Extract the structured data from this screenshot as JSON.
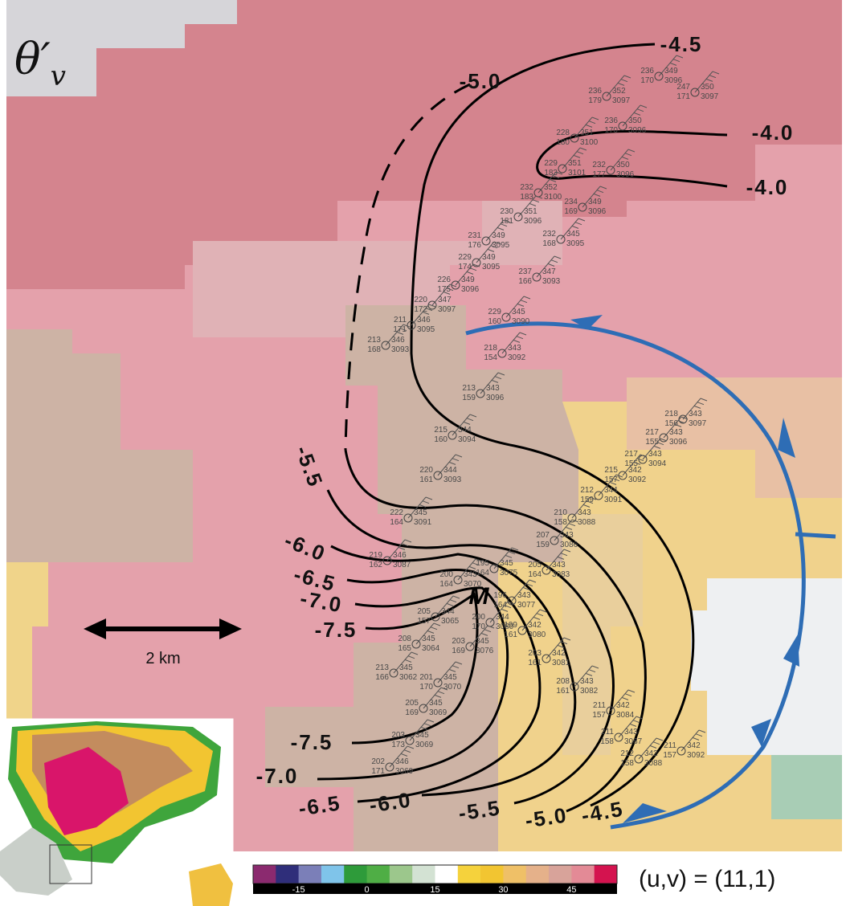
{
  "panel_label": {
    "base": "θ′",
    "sub": "v"
  },
  "marker_label": "M",
  "scale_bar_label": "2 km",
  "vector_label": "(u,v) = (11,1)",
  "contour_labels": [
    "-4.5",
    "-5.0",
    "-4.0",
    "-4.0",
    "-5.5",
    "-6.0",
    "-6.5",
    "-7.0",
    "-7.5",
    "-7.5",
    "-7.0",
    "-6.5",
    "-6.0",
    "-5.5",
    "-5.0",
    "-4.5"
  ],
  "colorbar": {
    "clim": [
      -25,
      55
    ],
    "ticks": [
      -15,
      0,
      15,
      30,
      45
    ],
    "colors": [
      "#8b2a6f",
      "#2f2e7a",
      "#7b7fb8",
      "#7fc4ea",
      "#2e9b3a",
      "#4fae45",
      "#9cc78c",
      "#d3e2d3",
      "#ffffff",
      "#f5d23c",
      "#f2c531",
      "#efc067",
      "#e5b18a",
      "#d8a39a",
      "#e38a96",
      "#d4134f"
    ]
  },
  "stations": [
    {
      "tl": "236",
      "bl": "170",
      "tr": "349",
      "br": "3096"
    },
    {
      "tl": "236",
      "bl": "179",
      "tr": "352",
      "br": "3097"
    },
    {
      "tl": "247",
      "bl": "171",
      "tr": "350",
      "br": "3097"
    },
    {
      "tl": "236",
      "bl": "170",
      "tr": "350",
      "br": "3096"
    },
    {
      "tl": "228",
      "bl": "180",
      "tr": "351",
      "br": "3100"
    },
    {
      "tl": "229",
      "bl": "183",
      "tr": "351",
      "br": "3101"
    },
    {
      "tl": "232",
      "bl": "177",
      "tr": "350",
      "br": "3096"
    },
    {
      "tl": "232",
      "bl": "183",
      "tr": "352",
      "br": "3100"
    },
    {
      "tl": "234",
      "bl": "169",
      "tr": "349",
      "br": "3096"
    },
    {
      "tl": "230",
      "bl": "181",
      "tr": "351",
      "br": "3096"
    },
    {
      "tl": "231",
      "bl": "176",
      "tr": "349",
      "br": "3095"
    },
    {
      "tl": "232",
      "bl": "168",
      "tr": "345",
      "br": "3095"
    },
    {
      "tl": "229",
      "bl": "174",
      "tr": "349",
      "br": "3095"
    },
    {
      "tl": "237",
      "bl": "166",
      "tr": "347",
      "br": "3093"
    },
    {
      "tl": "226",
      "bl": "175",
      "tr": "349",
      "br": "3096"
    },
    {
      "tl": "220",
      "bl": "172",
      "tr": "347",
      "br": "3097"
    },
    {
      "tl": "229",
      "bl": "160",
      "tr": "345",
      "br": "3090"
    },
    {
      "tl": "211",
      "bl": "171",
      "tr": "346",
      "br": "3095"
    },
    {
      "tl": "213",
      "bl": "168",
      "tr": "346",
      "br": "3093"
    },
    {
      "tl": "218",
      "bl": "154",
      "tr": "343",
      "br": "3092"
    },
    {
      "tl": "213",
      "bl": "159",
      "tr": "343",
      "br": "3096"
    },
    {
      "tl": "215",
      "bl": "160",
      "tr": "344",
      "br": "3094"
    },
    {
      "tl": "218",
      "bl": "156",
      "tr": "343",
      "br": "3097"
    },
    {
      "tl": "217",
      "bl": "155",
      "tr": "343",
      "br": "3096"
    },
    {
      "tl": "217",
      "bl": "155",
      "tr": "343",
      "br": "3094"
    },
    {
      "tl": "215",
      "bl": "157",
      "tr": "342",
      "br": "3092"
    },
    {
      "tl": "220",
      "bl": "161",
      "tr": "344",
      "br": "3093"
    },
    {
      "tl": "212",
      "bl": "159",
      "tr": "344",
      "br": "3091"
    },
    {
      "tl": "210",
      "bl": "158",
      "tr": "343",
      "br": "3088"
    },
    {
      "tl": "222",
      "bl": "164",
      "tr": "345",
      "br": "3091"
    },
    {
      "tl": "207",
      "bl": "159",
      "tr": "343",
      "br": "3086"
    },
    {
      "tl": "219",
      "bl": "162",
      "tr": "346",
      "br": "3087"
    },
    {
      "tl": "205",
      "bl": "164",
      "tr": "343",
      "br": "3083"
    },
    {
      "tl": "195",
      "bl": "164",
      "tr": "345",
      "br": "3075"
    },
    {
      "tl": "200",
      "bl": "164",
      "tr": "343",
      "br": "3070"
    },
    {
      "tl": "196",
      "bl": "164",
      "tr": "343",
      "br": "3077"
    },
    {
      "tl": "205",
      "bl": "157",
      "tr": "344",
      "br": "3065"
    },
    {
      "tl": "200",
      "bl": "170",
      "tr": "344",
      "br": "3080"
    },
    {
      "tl": "199",
      "bl": "161",
      "tr": "342",
      "br": "3080"
    },
    {
      "tl": "208",
      "bl": "165",
      "tr": "345",
      "br": "3064"
    },
    {
      "tl": "203",
      "bl": "169",
      "tr": "345",
      "br": "3076"
    },
    {
      "tl": "203",
      "bl": "161",
      "tr": "342",
      "br": "3081"
    },
    {
      "tl": "213",
      "bl": "166",
      "tr": "345",
      "br": "3062"
    },
    {
      "tl": "201",
      "bl": "170",
      "tr": "345",
      "br": "3070"
    },
    {
      "tl": "208",
      "bl": "161",
      "tr": "343",
      "br": "3082"
    },
    {
      "tl": "205",
      "bl": "169",
      "tr": "345",
      "br": "3069"
    },
    {
      "tl": "211",
      "bl": "157",
      "tr": "342",
      "br": "3084"
    },
    {
      "tl": "203",
      "bl": "173",
      "tr": "345",
      "br": "3069"
    },
    {
      "tl": "211",
      "bl": "158",
      "tr": "343",
      "br": "3087"
    },
    {
      "tl": "211",
      "bl": "157",
      "tr": "342",
      "br": "3092"
    },
    {
      "tl": "212",
      "bl": "158",
      "tr": "342",
      "br": "3088"
    },
    {
      "tl": "202",
      "bl": "171",
      "tr": "346",
      "br": "3069"
    }
  ]
}
